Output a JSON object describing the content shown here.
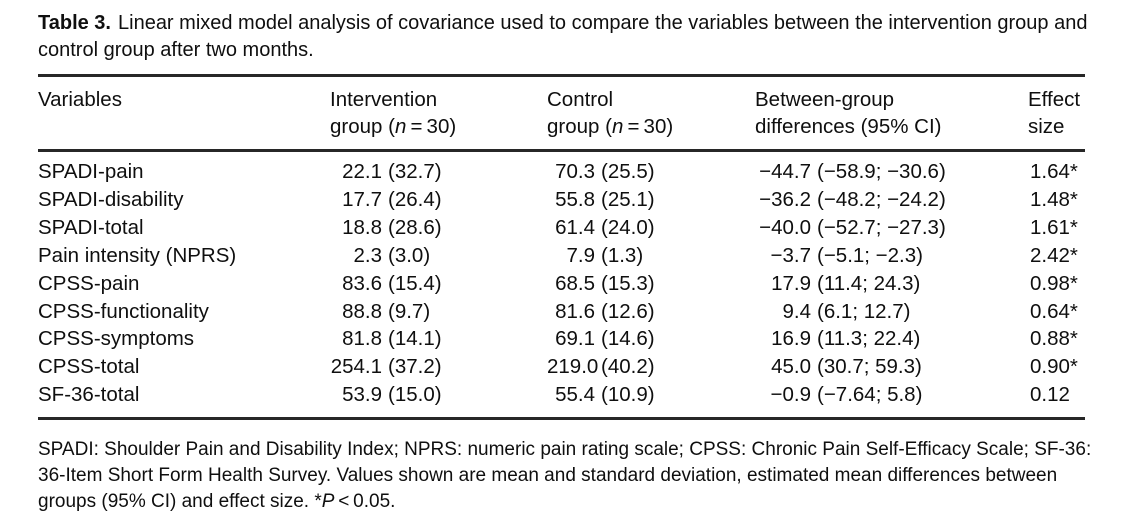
{
  "caption": {
    "label": "Table 3.",
    "text": "Linear mixed model analysis of covariance used to compare the variables between the intervention group and control group after two months."
  },
  "header": {
    "variables": "Variables",
    "intervention": {
      "line1": "Intervention",
      "group_prefix": "group (",
      "n": "n",
      "group_suffix": " = 30)"
    },
    "control": {
      "line1": "Control",
      "group_prefix": "group (",
      "n": "n",
      "group_suffix": " = 30)"
    },
    "between": {
      "line1": "Between-group",
      "line2": "differences (95% CI)"
    },
    "effect": {
      "line1": "Effect",
      "line2": "size"
    }
  },
  "rows": [
    {
      "variable": "SPADI-pain",
      "intervention_mean": "22.1",
      "intervention_sd": "(32.7)",
      "control_mean": "70.3",
      "control_sd": "(25.5)",
      "diff_mean": "−44.7",
      "diff_ci": "(−58.9; −30.6)",
      "effect": "1.64*"
    },
    {
      "variable": "SPADI-disability",
      "intervention_mean": "17.7",
      "intervention_sd": "(26.4)",
      "control_mean": "55.8",
      "control_sd": "(25.1)",
      "diff_mean": "−36.2",
      "diff_ci": "(−48.2; −24.2)",
      "effect": "1.48*"
    },
    {
      "variable": "SPADI-total",
      "intervention_mean": "18.8",
      "intervention_sd": "(28.6)",
      "control_mean": "61.4",
      "control_sd": "(24.0)",
      "diff_mean": "−40.0",
      "diff_ci": "(−52.7; −27.3)",
      "effect": "1.61*"
    },
    {
      "variable": "Pain intensity (NPRS)",
      "intervention_mean": "2.3",
      "intervention_sd": "(3.0)",
      "control_mean": "7.9",
      "control_sd": "(1.3)",
      "diff_mean": "−3.7",
      "diff_ci": "(−5.1; −2.3)",
      "effect": "2.42*"
    },
    {
      "variable": "CPSS-pain",
      "intervention_mean": "83.6",
      "intervention_sd": "(15.4)",
      "control_mean": "68.5",
      "control_sd": "(15.3)",
      "diff_mean": "17.9",
      "diff_ci": "(11.4; 24.3)",
      "effect": "0.98*"
    },
    {
      "variable": "CPSS-functionality",
      "intervention_mean": "88.8",
      "intervention_sd": "(9.7)",
      "control_mean": "81.6",
      "control_sd": "(12.6)",
      "diff_mean": "9.4",
      "diff_ci": "(6.1; 12.7)",
      "effect": "0.64*"
    },
    {
      "variable": "CPSS-symptoms",
      "intervention_mean": "81.8",
      "intervention_sd": "(14.1)",
      "control_mean": "69.1",
      "control_sd": "(14.6)",
      "diff_mean": "16.9",
      "diff_ci": "(11.3; 22.4)",
      "effect": "0.88*"
    },
    {
      "variable": "CPSS-total",
      "intervention_mean": "254.1",
      "intervention_sd": "(37.2)",
      "control_mean": "219.0",
      "control_sd": "(40.2)",
      "diff_mean": "45.0",
      "diff_ci": "(30.7; 59.3)",
      "effect": "0.90*"
    },
    {
      "variable": "SF-36-total",
      "intervention_mean": "53.9",
      "intervention_sd": "(15.0)",
      "control_mean": "55.4",
      "control_sd": "(10.9)",
      "diff_mean": "−0.9",
      "diff_ci": "(−7.64; 5.8)",
      "effect": "0.12"
    }
  ],
  "footnote": {
    "text": "SPADI: Shoulder Pain and Disability Index; NPRS: numeric pain rating scale; CPSS: Chronic Pain Self-Efficacy Scale; SF-36: 36-Item Short Form Health Survey. Values shown are mean and standard deviation, estimated mean differences between groups (95% CI) and effect size. ",
    "sig_star": "*",
    "sig_p": "P",
    "sig_rest": " < 0.05."
  }
}
